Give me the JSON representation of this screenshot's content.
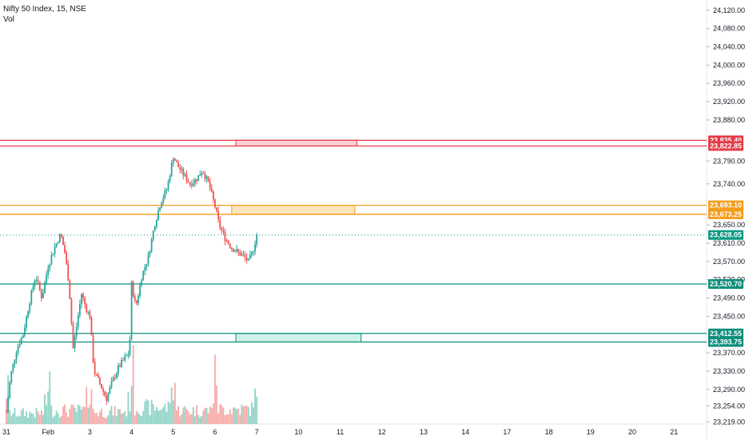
{
  "legend": {
    "title": "Nifty 50 Index, 15, NSE",
    "volume_label": "Vol"
  },
  "colors": {
    "up": "#26a69a",
    "down": "#ef5350",
    "vol_up": "#8fd3c7",
    "vol_down": "#f7a9a7",
    "resistance": "#e53945",
    "supply": "#f59c1a",
    "support": "#0d8f7c",
    "last_price": "#089981",
    "axis_text": "#131722",
    "pane_border": "#e0e3eb"
  },
  "chart_data": {
    "type": "candlestick",
    "symbol": "Nifty 50 Index",
    "interval": "15",
    "exchange": "NSE",
    "y_axis": {
      "min": 23195,
      "max": 24125,
      "ticks": [
        24120,
        24080,
        24040,
        24000,
        23960,
        23920,
        23880,
        23790,
        23740,
        23650,
        23610,
        23570,
        23530,
        23490,
        23450,
        23370,
        23330,
        23290,
        23254,
        23219
      ]
    },
    "x_axis": {
      "ticks": [
        {
          "label": "31",
          "day": 0
        },
        {
          "label": "Feb",
          "day": 1
        },
        {
          "label": "3",
          "day": 2
        },
        {
          "label": "4",
          "day": 3
        },
        {
          "label": "5",
          "day": 4
        },
        {
          "label": "6",
          "day": 5
        },
        {
          "label": "7",
          "day": 6
        },
        {
          "label": "10",
          "day": 7
        },
        {
          "label": "11",
          "day": 8
        },
        {
          "label": "12",
          "day": 9
        },
        {
          "label": "13",
          "day": 10
        },
        {
          "label": "14",
          "day": 11
        },
        {
          "label": "17",
          "day": 12
        },
        {
          "label": "18",
          "day": 13
        },
        {
          "label": "19",
          "day": 14
        },
        {
          "label": "20",
          "day": 15
        },
        {
          "label": "21",
          "day": 16
        }
      ]
    },
    "price_path": [
      [
        0,
        23240
      ],
      [
        0.1,
        23320
      ],
      [
        0.25,
        23380
      ],
      [
        0.4,
        23410
      ],
      [
        0.55,
        23480
      ],
      [
        0.7,
        23540
      ],
      [
        0.85,
        23490
      ],
      [
        1.0,
        23560
      ],
      [
        1.15,
        23600
      ],
      [
        1.3,
        23630
      ],
      [
        1.4,
        23590
      ],
      [
        1.5,
        23520
      ],
      [
        1.6,
        23380
      ],
      [
        1.7,
        23440
      ],
      [
        1.8,
        23500
      ],
      [
        1.9,
        23470
      ],
      [
        2.0,
        23450
      ],
      [
        2.1,
        23330
      ],
      [
        2.25,
        23300
      ],
      [
        2.4,
        23270
      ],
      [
        2.55,
        23310
      ],
      [
        2.7,
        23340
      ],
      [
        2.85,
        23360
      ],
      [
        2.95,
        23370
      ],
      [
        3.0,
        23520
      ],
      [
        3.1,
        23470
      ],
      [
        3.25,
        23540
      ],
      [
        3.4,
        23580
      ],
      [
        3.55,
        23650
      ],
      [
        3.7,
        23700
      ],
      [
        3.85,
        23730
      ],
      [
        4.0,
        23800
      ],
      [
        4.1,
        23780
      ],
      [
        4.25,
        23760
      ],
      [
        4.4,
        23740
      ],
      [
        4.55,
        23750
      ],
      [
        4.7,
        23770
      ],
      [
        4.85,
        23740
      ],
      [
        5.0,
        23690
      ],
      [
        5.1,
        23650
      ],
      [
        5.25,
        23620
      ],
      [
        5.4,
        23600
      ],
      [
        5.55,
        23590
      ],
      [
        5.7,
        23580
      ],
      [
        5.8,
        23570
      ],
      [
        5.9,
        23590
      ],
      [
        6.0,
        23628
      ]
    ],
    "volume_profile": [
      {
        "day_from": 0,
        "day_to": 1,
        "base": 0.4
      },
      {
        "day_from": 1,
        "day_to": 2,
        "base": 0.5
      },
      {
        "day_from": 2,
        "day_to": 3,
        "base": 0.45
      },
      {
        "day_from": 3,
        "day_to": 4,
        "base": 0.6
      },
      {
        "day_from": 4,
        "day_to": 5,
        "base": 0.5
      },
      {
        "day_from": 5,
        "day_to": 6,
        "base": 0.55
      }
    ],
    "levels": [
      {
        "name": "resistance-upper",
        "price": 23835.4,
        "label": "23,835.40",
        "kind": "resistance"
      },
      {
        "name": "resistance-lower",
        "price": 23822.85,
        "label": "23,822.85",
        "kind": "resistance"
      },
      {
        "name": "supply-upper",
        "price": 23693.1,
        "label": "23,693.10",
        "kind": "supply"
      },
      {
        "name": "supply-lower",
        "price": 23673.25,
        "label": "23,673.25",
        "kind": "supply"
      },
      {
        "name": "mid-support",
        "price": 23520.7,
        "label": "23,520.70",
        "kind": "support"
      },
      {
        "name": "support-upper",
        "price": 23412.55,
        "label": "23,412.55",
        "kind": "support"
      },
      {
        "name": "support-lower",
        "price": 23393.75,
        "label": "23,393.75",
        "kind": "support"
      }
    ],
    "zones": [
      {
        "name": "resistance-zone",
        "from_day": 5.5,
        "to_day": 8.4,
        "price_top": 23835.4,
        "price_bottom": 23822.85,
        "kind": "resistance"
      },
      {
        "name": "supply-zone",
        "from_day": 5.4,
        "to_day": 8.35,
        "price_top": 23693.1,
        "price_bottom": 23673.25,
        "kind": "supply"
      },
      {
        "name": "demand-zone",
        "from_day": 5.5,
        "to_day": 8.5,
        "price_top": 23412.55,
        "price_bottom": 23393.75,
        "kind": "support"
      }
    ],
    "last_price": {
      "price": 23628.05,
      "label": "23,628.05"
    }
  }
}
